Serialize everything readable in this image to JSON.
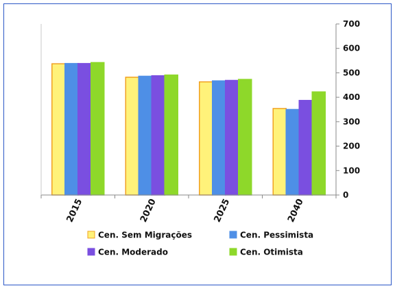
{
  "chart_data": {
    "type": "bar",
    "categories": [
      "2015",
      "2020",
      "2025",
      "2040"
    ],
    "series": [
      {
        "name": "Cen. Sem Migrações",
        "color": "#fff27a",
        "edge": "#f0a020",
        "values": [
          537,
          482,
          463,
          354
        ]
      },
      {
        "name": "Cen. Pessimista",
        "color": "#4e8fe6",
        "edge": "#4e8fe6",
        "values": [
          538,
          486,
          467,
          350
        ]
      },
      {
        "name": "Cen. Moderado",
        "color": "#7a4fe0",
        "edge": "#7a4fe0",
        "values": [
          538,
          488,
          469,
          387
        ]
      },
      {
        "name": "Cen. Otimista",
        "color": "#8ed82a",
        "edge": "#8ed82a",
        "values": [
          542,
          491,
          473,
          422
        ]
      }
    ],
    "ylim": [
      0,
      700
    ],
    "yticks": [
      0,
      100,
      200,
      300,
      400,
      500,
      600,
      700
    ],
    "y_axis_side": "right",
    "grid": false,
    "legend_position": "bottom"
  }
}
